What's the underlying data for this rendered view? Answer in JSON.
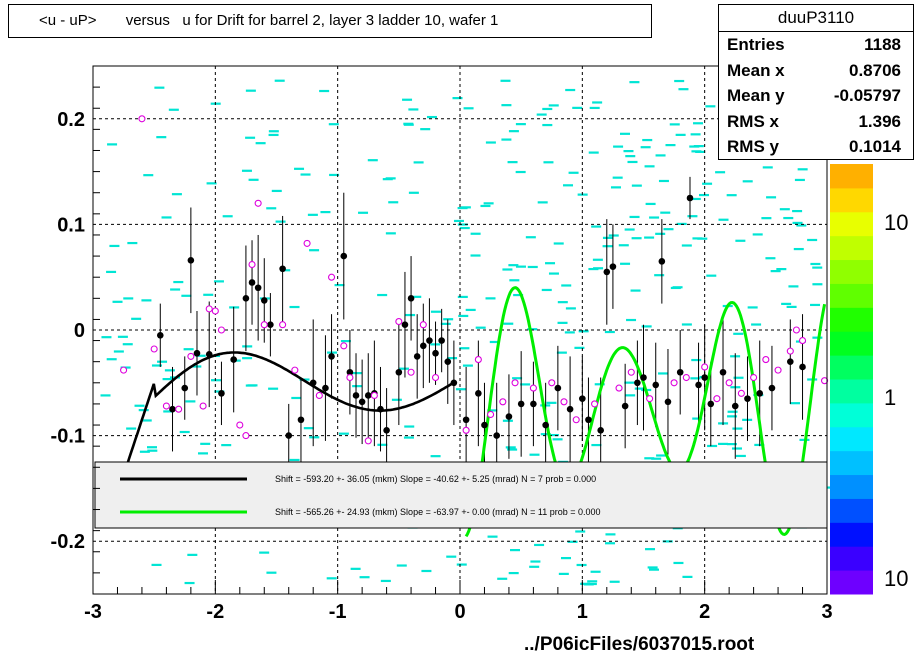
{
  "title": "<u - uP>       versus   u for Drift for barrel 2, layer 3 ladder 10, wafer 1",
  "stats": {
    "name": "duuP3110",
    "rows": [
      {
        "label": "Entries",
        "value": "1188"
      },
      {
        "label": "Mean x",
        "value": "0.8706"
      },
      {
        "label": "Mean y",
        "value": "-0.05797"
      },
      {
        "label": "RMS x",
        "value": "1.396"
      },
      {
        "label": "RMS y",
        "value": "0.1014"
      }
    ]
  },
  "footer": "../P06icFiles/6037015.root",
  "colors": {
    "histogram_cells": "#00e5d4",
    "black_profile": "#000000",
    "open_markers": "#dd00dd",
    "fit_black": "#000000",
    "fit_green": "#00ee00"
  },
  "chart_data": {
    "type": "scatter",
    "xlim": [
      -3,
      3
    ],
    "ylim": [
      -0.25,
      0.25
    ],
    "x_ticks": [
      "-3",
      "-2",
      "-1",
      "0",
      "1",
      "2",
      "3"
    ],
    "y_ticks": [
      "0.2",
      "0.1",
      "0",
      "-0.1",
      "-0.2"
    ],
    "grid": true,
    "palette_labels": [
      "10",
      "1",
      "10"
    ],
    "legend": [
      {
        "color": "black",
        "text": "Shift =  -593.20 +- 36.05 (mkm) Slope =   -40.62 +- 5.25 (mrad)  N = 7 prob = 0.000"
      },
      {
        "color": "green",
        "text": "Shift =  -565.26 +- 24.93 (mkm) Slope =   -63.97 +- 0.00 (mrad)  N = 11 prob = 0.000"
      }
    ],
    "black_profile": [
      {
        "x": -2.45,
        "y": -0.005,
        "e": 0.03
      },
      {
        "x": -2.35,
        "y": -0.075,
        "e": 0.04
      },
      {
        "x": -2.25,
        "y": -0.055,
        "e": 0.03
      },
      {
        "x": -2.2,
        "y": 0.066,
        "e": 0.05
      },
      {
        "x": -2.15,
        "y": -0.022,
        "e": 0.04
      },
      {
        "x": -2.05,
        "y": -0.023,
        "e": 0.05
      },
      {
        "x": -1.95,
        "y": -0.06,
        "e": 0.03
      },
      {
        "x": -1.85,
        "y": -0.028,
        "e": 0.05
      },
      {
        "x": -1.75,
        "y": 0.03,
        "e": 0.05
      },
      {
        "x": -1.7,
        "y": 0.045,
        "e": 0.04
      },
      {
        "x": -1.65,
        "y": 0.04,
        "e": 0.05
      },
      {
        "x": -1.6,
        "y": 0.028,
        "e": 0.04
      },
      {
        "x": -1.55,
        "y": 0.005,
        "e": 0.03
      },
      {
        "x": -1.45,
        "y": 0.058,
        "e": 0.05
      },
      {
        "x": -1.4,
        "y": -0.1,
        "e": 0.03
      },
      {
        "x": -1.3,
        "y": -0.085,
        "e": 0.04
      },
      {
        "x": -1.2,
        "y": -0.05,
        "e": 0.06
      },
      {
        "x": -1.1,
        "y": -0.055,
        "e": 0.05
      },
      {
        "x": -1.05,
        "y": -0.025,
        "e": 0.04
      },
      {
        "x": -0.95,
        "y": 0.07,
        "e": 0.06
      },
      {
        "x": -0.9,
        "y": -0.04,
        "e": 0.04
      },
      {
        "x": -0.85,
        "y": -0.062,
        "e": 0.04
      },
      {
        "x": -0.8,
        "y": -0.068,
        "e": 0.04
      },
      {
        "x": -0.75,
        "y": -0.062,
        "e": 0.04
      },
      {
        "x": -0.7,
        "y": -0.06,
        "e": 0.05
      },
      {
        "x": -0.65,
        "y": -0.075,
        "e": 0.04
      },
      {
        "x": -0.6,
        "y": -0.095,
        "e": 0.04
      },
      {
        "x": -0.5,
        "y": -0.04,
        "e": 0.05
      },
      {
        "x": -0.45,
        "y": 0.005,
        "e": 0.05
      },
      {
        "x": -0.4,
        "y": 0.03,
        "e": 0.04
      },
      {
        "x": -0.35,
        "y": -0.025,
        "e": 0.04
      },
      {
        "x": -0.3,
        "y": -0.015,
        "e": 0.04
      },
      {
        "x": -0.25,
        "y": -0.01,
        "e": 0.04
      },
      {
        "x": -0.2,
        "y": -0.022,
        "e": 0.03
      },
      {
        "x": -0.15,
        "y": -0.01,
        "e": 0.03
      },
      {
        "x": -0.1,
        "y": -0.03,
        "e": 0.04
      },
      {
        "x": -0.05,
        "y": -0.05,
        "e": 0.04
      },
      {
        "x": 0.05,
        "y": -0.085,
        "e": 0.05
      },
      {
        "x": 0.15,
        "y": -0.06,
        "e": 0.05
      },
      {
        "x": 0.2,
        "y": -0.09,
        "e": 0.04
      },
      {
        "x": 0.3,
        "y": -0.1,
        "e": 0.05
      },
      {
        "x": 0.4,
        "y": -0.082,
        "e": 0.04
      },
      {
        "x": 0.5,
        "y": -0.07,
        "e": 0.05
      },
      {
        "x": 0.6,
        "y": -0.07,
        "e": 0.04
      },
      {
        "x": 0.7,
        "y": -0.09,
        "e": 0.04
      },
      {
        "x": 0.8,
        "y": -0.055,
        "e": 0.04
      },
      {
        "x": 0.9,
        "y": -0.075,
        "e": 0.05
      },
      {
        "x": 1.0,
        "y": -0.065,
        "e": 0.04
      },
      {
        "x": 1.05,
        "y": -0.085,
        "e": 0.04
      },
      {
        "x": 1.15,
        "y": -0.095,
        "e": 0.05
      },
      {
        "x": 1.2,
        "y": 0.055,
        "e": 0.05
      },
      {
        "x": 1.25,
        "y": 0.06,
        "e": 0.04
      },
      {
        "x": 1.35,
        "y": -0.072,
        "e": 0.04
      },
      {
        "x": 1.45,
        "y": -0.05,
        "e": 0.04
      },
      {
        "x": 1.5,
        "y": -0.045,
        "e": 0.05
      },
      {
        "x": 1.6,
        "y": -0.052,
        "e": 0.04
      },
      {
        "x": 1.7,
        "y": -0.068,
        "e": 0.05
      },
      {
        "x": 1.65,
        "y": 0.065,
        "e": 0.04
      },
      {
        "x": 1.8,
        "y": -0.04,
        "e": 0.04
      },
      {
        "x": 1.95,
        "y": -0.052,
        "e": 0.04
      },
      {
        "x": 2.0,
        "y": -0.045,
        "e": 0.05
      },
      {
        "x": 2.05,
        "y": -0.07,
        "e": 0.04
      },
      {
        "x": 2.15,
        "y": -0.04,
        "e": 0.05
      },
      {
        "x": 2.25,
        "y": -0.072,
        "e": 0.05
      },
      {
        "x": 2.35,
        "y": -0.065,
        "e": 0.04
      },
      {
        "x": 2.45,
        "y": -0.06,
        "e": 0.05
      },
      {
        "x": 2.55,
        "y": -0.055,
        "e": 0.04
      },
      {
        "x": 2.7,
        "y": -0.03,
        "e": 0.04
      },
      {
        "x": 2.8,
        "y": -0.035,
        "e": 0.05
      },
      {
        "x": 1.88,
        "y": 0.125,
        "e": 0.02
      }
    ],
    "open_markers": [
      {
        "x": -2.6,
        "y": 0.2
      },
      {
        "x": -2.75,
        "y": -0.038
      },
      {
        "x": -2.5,
        "y": -0.018
      },
      {
        "x": -2.4,
        "y": -0.072
      },
      {
        "x": -2.3,
        "y": -0.075
      },
      {
        "x": -2.2,
        "y": -0.025
      },
      {
        "x": -2.1,
        "y": -0.072
      },
      {
        "x": -2.05,
        "y": 0.02
      },
      {
        "x": -2.0,
        "y": 0.018
      },
      {
        "x": -1.95,
        "y": 0.0
      },
      {
        "x": -1.8,
        "y": -0.09
      },
      {
        "x": -1.75,
        "y": -0.1
      },
      {
        "x": -1.7,
        "y": 0.062
      },
      {
        "x": -1.65,
        "y": 0.12
      },
      {
        "x": -1.6,
        "y": 0.005
      },
      {
        "x": -1.45,
        "y": 0.005
      },
      {
        "x": -1.35,
        "y": -0.038
      },
      {
        "x": -1.25,
        "y": 0.082
      },
      {
        "x": -1.15,
        "y": -0.062
      },
      {
        "x": -1.05,
        "y": 0.05
      },
      {
        "x": -0.95,
        "y": -0.015
      },
      {
        "x": -0.9,
        "y": -0.045
      },
      {
        "x": -0.75,
        "y": -0.105
      },
      {
        "x": -0.7,
        "y": -0.062
      },
      {
        "x": -0.5,
        "y": 0.008
      },
      {
        "x": -0.4,
        "y": -0.04
      },
      {
        "x": -0.3,
        "y": 0.005
      },
      {
        "x": -0.2,
        "y": -0.045
      },
      {
        "x": 0.05,
        "y": -0.095
      },
      {
        "x": 0.15,
        "y": -0.028
      },
      {
        "x": 0.25,
        "y": -0.08
      },
      {
        "x": 0.35,
        "y": -0.068
      },
      {
        "x": 0.45,
        "y": -0.05
      },
      {
        "x": 0.6,
        "y": -0.055
      },
      {
        "x": 0.75,
        "y": -0.05
      },
      {
        "x": 0.85,
        "y": -0.068
      },
      {
        "x": 0.95,
        "y": -0.085
      },
      {
        "x": 1.1,
        "y": -0.07
      },
      {
        "x": 1.3,
        "y": -0.055
      },
      {
        "x": 1.4,
        "y": -0.04
      },
      {
        "x": 1.55,
        "y": -0.065
      },
      {
        "x": 1.75,
        "y": -0.05
      },
      {
        "x": 1.85,
        "y": -0.045
      },
      {
        "x": 2.0,
        "y": -0.035
      },
      {
        "x": 2.1,
        "y": -0.065
      },
      {
        "x": 2.2,
        "y": -0.05
      },
      {
        "x": 2.3,
        "y": -0.06
      },
      {
        "x": 2.4,
        "y": -0.045
      },
      {
        "x": 2.5,
        "y": -0.028
      },
      {
        "x": 2.6,
        "y": -0.038
      },
      {
        "x": 2.7,
        "y": -0.02
      },
      {
        "x": 2.75,
        "y": 0.0
      },
      {
        "x": 2.8,
        "y": -0.01
      },
      {
        "x": 2.98,
        "y": -0.048
      }
    ]
  }
}
